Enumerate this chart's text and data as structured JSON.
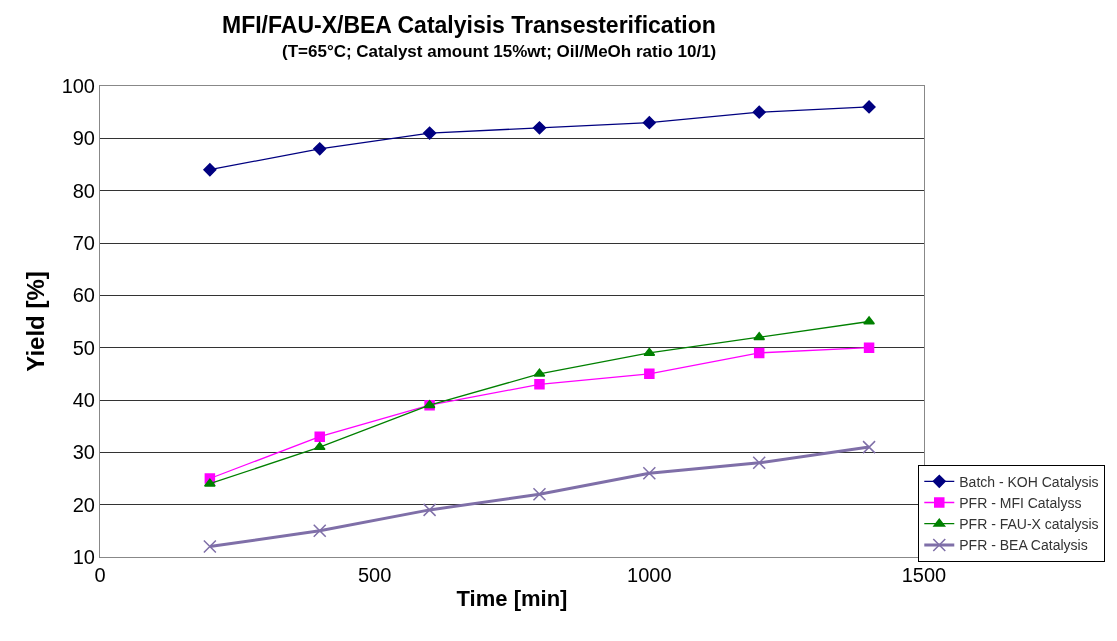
{
  "chart_data": {
    "type": "line",
    "title": "MFI/FAU-X/BEA Catalyisis Transesterification",
    "subtitle": "(T=65°C; Catalyst amount 15%wt; Oil/MeOh ratio 10/1)",
    "xlabel": "Time [min]",
    "ylabel": "Yield [%]",
    "x": [
      200,
      400,
      600,
      800,
      1000,
      1200,
      1400
    ],
    "series": [
      {
        "name": "Batch - KOH Catalysis",
        "color": "#000080",
        "marker": "diamond",
        "values": [
          84,
          88,
          91,
          92,
          93,
          95,
          96
        ]
      },
      {
        "name": "PFR - MFI Catalyss",
        "color": "#ff00ff",
        "marker": "square",
        "values": [
          25,
          33,
          39,
          43,
          45,
          49,
          50
        ]
      },
      {
        "name": "PFR - FAU-X catalysis",
        "color": "#008000",
        "marker": "triangle",
        "values": [
          24,
          31,
          39,
          45,
          49,
          52,
          55
        ]
      },
      {
        "name": "PFR - BEA Catalysis",
        "color": "#7f6fa8",
        "marker": "cross",
        "values": [
          12,
          15,
          19,
          22,
          26,
          28,
          31
        ]
      }
    ],
    "xlim": [
      0,
      1500
    ],
    "xticks": [
      0,
      500,
      1000,
      1500
    ],
    "ylim": [
      10,
      100
    ],
    "yticks": [
      10,
      20,
      30,
      40,
      50,
      60,
      70,
      80,
      90,
      100
    ],
    "grid": "y",
    "legend": "bottom right",
    "line_style": "solid"
  }
}
